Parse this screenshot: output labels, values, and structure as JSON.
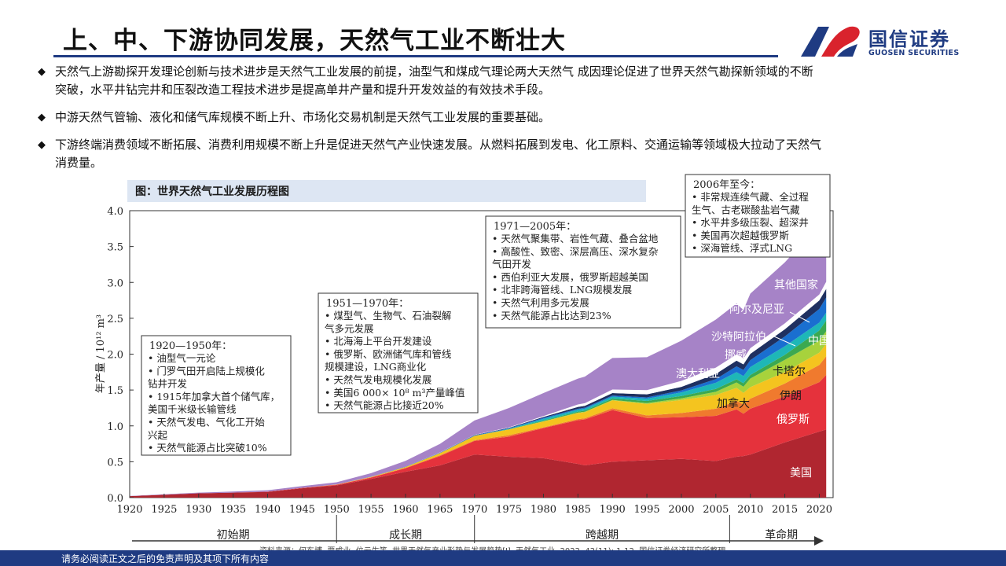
{
  "title": "上、中、下游协同发展，天然气工业不断壮大",
  "logo": {
    "cn": "国信证券",
    "en": "GUOSEN SECURITIES"
  },
  "bullets": [
    {
      "line1": "天然气上游勘探开发理论创新与技术进步是天然气工业发展的前提，油型气和煤成气理论两大天然气  成因理论促进了世界天然气勘探新领域的不断",
      "line2": "突破，水平井钻完井和压裂改造工程技术进步是提高单井产量和提升开发效益的有效技术手段。"
    },
    {
      "line1": "中游天然气管输、液化和储气库规模不断上升、市场化交易机制是天然气工业发展的重要基础。",
      "line2": ""
    },
    {
      "line1": "下游终端消费领域不断拓展、消费利用规模不断上升是促进天然气产业快速发展。从燃料拓展到发电、化工原料、交通运输等领域极大拉动了天然气",
      "line2": "消费量。"
    }
  ],
  "bullet_symbol": "◆",
  "footer": "请务必阅读正文之后的免责声明及其项下所有内容",
  "source": "资料来源：何东博, 贾成业, 位云生等. 世界天然气产业形势与发展趋势[J]. 天然气工业, 2022, 42(11): 1-12, 国信证券经济研究所整理",
  "chart_data": {
    "type": "area",
    "title": "图：世界天然气工业发展历程图",
    "ylabel": "年产量 / 10¹² m³",
    "xlabel": "",
    "xlim": [
      1920,
      2022
    ],
    "ylim": [
      0,
      4.0
    ],
    "yticks": [
      0.0,
      0.5,
      1.0,
      1.5,
      2.0,
      2.5,
      3.0,
      3.5,
      4.0
    ],
    "ytick_labels": [
      "0.0",
      "0.5",
      "1.0",
      "1.5",
      "2.0",
      "2.5",
      "3.0",
      "3.5",
      "4.0"
    ],
    "xticks": [
      1920,
      1925,
      1930,
      1935,
      1940,
      1945,
      1950,
      1955,
      1960,
      1965,
      1970,
      1975,
      1980,
      1985,
      1990,
      1995,
      2000,
      2005,
      2010,
      2015,
      2020
    ],
    "x": [
      1920,
      1925,
      1930,
      1935,
      1940,
      1945,
      1950,
      1955,
      1960,
      1965,
      1970,
      1975,
      1980,
      1985,
      1986,
      1990,
      1995,
      2000,
      2005,
      2008,
      2009,
      2010,
      2015,
      2020,
      2021
    ],
    "series": [
      {
        "name": "美国",
        "color": "#b02630",
        "values": [
          0.02,
          0.04,
          0.06,
          0.07,
          0.08,
          0.13,
          0.17,
          0.26,
          0.36,
          0.45,
          0.6,
          0.57,
          0.55,
          0.47,
          0.45,
          0.5,
          0.52,
          0.54,
          0.51,
          0.57,
          0.58,
          0.6,
          0.77,
          0.92,
          0.95
        ]
      },
      {
        "name": "俄罗斯",
        "color": "#e5323c",
        "values": [
          0,
          0,
          0,
          0,
          0.003,
          0.005,
          0.01,
          0.02,
          0.05,
          0.13,
          0.19,
          0.28,
          0.42,
          0.61,
          0.64,
          0.72,
          0.59,
          0.58,
          0.63,
          0.66,
          0.59,
          0.64,
          0.64,
          0.69,
          0.76
        ]
      },
      {
        "name": "伊朗",
        "color": "#f07a2e",
        "values": [
          0,
          0,
          0,
          0,
          0,
          0,
          0.001,
          0.003,
          0.006,
          0.01,
          0.01,
          0.02,
          0.01,
          0.015,
          0.016,
          0.025,
          0.035,
          0.06,
          0.1,
          0.12,
          0.13,
          0.14,
          0.18,
          0.24,
          0.26
        ]
      },
      {
        "name": "加拿大",
        "color": "#f4c41f",
        "values": [
          0,
          0,
          0,
          0,
          0,
          0,
          0.002,
          0.006,
          0.012,
          0.03,
          0.06,
          0.08,
          0.08,
          0.085,
          0.085,
          0.11,
          0.16,
          0.18,
          0.19,
          0.18,
          0.16,
          0.16,
          0.16,
          0.17,
          0.17
        ]
      },
      {
        "name": "卡塔尔",
        "color": "#a7d23c",
        "values": [
          0,
          0,
          0,
          0,
          0,
          0,
          0,
          0,
          0,
          0,
          0,
          0.001,
          0.004,
          0.005,
          0.006,
          0.006,
          0.013,
          0.024,
          0.045,
          0.075,
          0.087,
          0.12,
          0.17,
          0.17,
          0.18
        ]
      },
      {
        "name": "澳大利亚",
        "color": "#3ca950",
        "values": [
          0,
          0,
          0,
          0,
          0,
          0,
          0,
          0,
          0,
          0.001,
          0.002,
          0.005,
          0.01,
          0.014,
          0.015,
          0.02,
          0.03,
          0.033,
          0.04,
          0.045,
          0.048,
          0.05,
          0.07,
          0.14,
          0.15
        ]
      },
      {
        "name": "挪威",
        "color": "#1eb7b7",
        "values": [
          0,
          0,
          0,
          0,
          0,
          0,
          0,
          0,
          0,
          0,
          0,
          0.003,
          0.025,
          0.027,
          0.028,
          0.027,
          0.031,
          0.05,
          0.087,
          0.1,
          0.1,
          0.11,
          0.12,
          0.11,
          0.11
        ]
      },
      {
        "name": "中国",
        "color": "#1a6fd0",
        "values": [
          0,
          0,
          0,
          0,
          0,
          0,
          0.001,
          0.002,
          0.004,
          0.005,
          0.006,
          0.009,
          0.014,
          0.013,
          0.014,
          0.015,
          0.018,
          0.027,
          0.05,
          0.08,
          0.085,
          0.096,
          0.136,
          0.19,
          0.21
        ]
      },
      {
        "name": "沙特阿拉伯",
        "color": "#1f3060",
        "values": [
          0,
          0,
          0,
          0,
          0,
          0,
          0,
          0,
          0,
          0.002,
          0.004,
          0.006,
          0.012,
          0.025,
          0.026,
          0.034,
          0.043,
          0.05,
          0.072,
          0.08,
          0.078,
          0.088,
          0.1,
          0.12,
          0.12
        ]
      },
      {
        "name": "阿尔及尼亚",
        "color": "#ffffff",
        "values": [
          0,
          0,
          0,
          0,
          0,
          0,
          0,
          0,
          0,
          0.002,
          0.003,
          0.005,
          0.012,
          0.035,
          0.036,
          0.05,
          0.058,
          0.084,
          0.088,
          0.086,
          0.079,
          0.08,
          0.083,
          0.082,
          0.1
        ]
      },
      {
        "name": "其他国家",
        "color": "#a683c7",
        "values": [
          0.003,
          0.006,
          0.01,
          0.015,
          0.02,
          0.025,
          0.03,
          0.05,
          0.08,
          0.12,
          0.2,
          0.27,
          0.32,
          0.36,
          0.37,
          0.44,
          0.46,
          0.56,
          0.67,
          0.71,
          0.68,
          0.76,
          0.85,
          0.97,
          1.02
        ]
      }
    ],
    "series_labels": [
      {
        "name": "美国",
        "text": "美国"
      },
      {
        "name": "俄罗斯",
        "text": "俄罗斯"
      },
      {
        "name": "伊朗",
        "text": "伊朗"
      },
      {
        "name": "加拿大",
        "text": "加拿大"
      },
      {
        "name": "卡塔尔",
        "text": "卡塔尔"
      },
      {
        "name": "澳大利亚",
        "text": "澳大利亚"
      },
      {
        "name": "挪威",
        "text": "挪威"
      },
      {
        "name": "中国",
        "text": "中国"
      },
      {
        "name": "沙特阿拉伯",
        "text": "沙特阿拉伯"
      },
      {
        "name": "阿尔及尼亚",
        "text": "阿尔及尼亚"
      },
      {
        "name": "其他国家",
        "text": "其他国家"
      }
    ],
    "periods": [
      {
        "label": "初始期",
        "start": 1920,
        "end": 1950
      },
      {
        "label": "成长期",
        "start": 1950,
        "end": 1970
      },
      {
        "label": "跨越期",
        "start": 1970,
        "end": 2007
      },
      {
        "label": "革命期",
        "start": 2007,
        "end": 2022
      }
    ],
    "annotations": [
      {
        "heading": "1920—1950年：",
        "items": [
          "• 油型气一元论",
          "• 门罗气田开启陆上规模化",
          "   钻井开发",
          "• 1915年加拿大首个储气库，",
          "   美国千米级长输管线",
          "• 天然气发电、气化工开始",
          "   兴起",
          "• 天然气能源占比突破10%"
        ]
      },
      {
        "heading": "1951—1970年：",
        "items": [
          "• 煤型气、生物气、石油裂解",
          "   气多元发展",
          "• 北海海上平台开发建设",
          "• 俄罗斯、欧洲储气库和管线",
          "   规模建设，LNG商业化",
          "• 天然气发电规模化发展",
          "• 美国6 000× 10⁸ m³产量峰值",
          "• 天然气能源占比接近20%"
        ]
      },
      {
        "heading": "1971—2005年：",
        "items": [
          "• 天然气聚集带、岩性气藏、叠合盆地",
          "• 高酸性、致密、深层高压、深水复杂",
          "   气田开发",
          "• 西伯利亚大发展，俄罗斯超越美国",
          "• 北非跨海管线、LNG规模发展",
          "• 天然气利用多元发展",
          "• 天然气能源占比达到23%"
        ]
      },
      {
        "heading": "2006年至今：",
        "items": [
          "• 非常规连续气藏、全过程",
          "   生气、古老碳酸盐岩气藏",
          "• 水平井多级压裂、超深井",
          "• 美国再次超越俄罗斯",
          "• 深海管线、浮式LNG"
        ]
      }
    ]
  }
}
